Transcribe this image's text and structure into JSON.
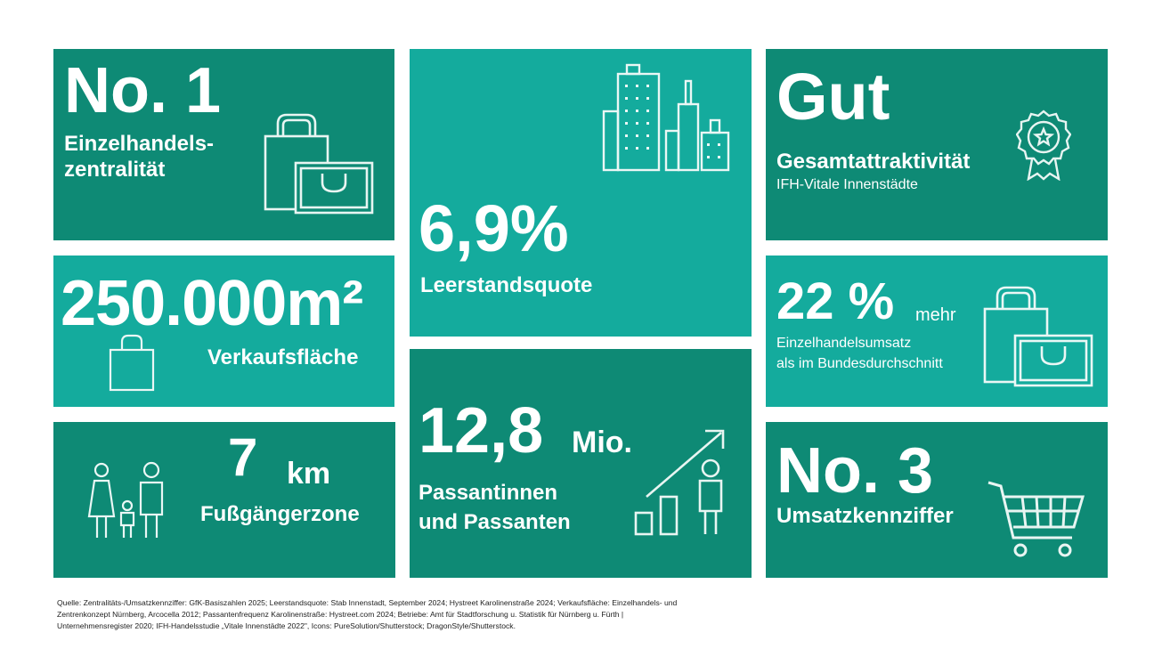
{
  "colors": {
    "dark_tile": "#0e8a75",
    "light_tile": "#14ab9d",
    "text": "#ffffff"
  },
  "tiles": {
    "zentralitaet": {
      "value": "No. 1",
      "label_line1": "Einzelhandels-",
      "label_line2": "zentralität",
      "icon": "shopping-bags-icon"
    },
    "leerstand": {
      "value": "6,9%",
      "label": "Leerstandsquote",
      "icon": "city-buildings-icon"
    },
    "attraktivitaet": {
      "value": "Gut",
      "label": "Gesamtattraktivität",
      "sublabel": "IFH-Vitale Innenstädte",
      "icon": "award-rosette-icon"
    },
    "verkaufsflaeche": {
      "value": "250.000m²",
      "label": "Verkaufsfläche",
      "icon": "shopping-bag-icon"
    },
    "umsatz": {
      "value": "22 %",
      "suffix": "mehr",
      "label_line1": "Einzelhandelsumsatz",
      "label_line2": "als im Bundesdurchschnitt",
      "icon": "shopping-bags-icon"
    },
    "fussgaengerzone": {
      "value": "7",
      "unit": "km",
      "label": "Fußgängerzone",
      "icon": "family-icon"
    },
    "passanten": {
      "value": "12,8",
      "unit": "Mio.",
      "label_line1": "Passantinnen",
      "label_line2": "und Passanten",
      "icon": "growth-chart-person-icon"
    },
    "umsatzkennziffer": {
      "value": "No. 3",
      "label": "Umsatzkennziffer",
      "icon": "shopping-cart-icon"
    }
  },
  "source": {
    "line1": "Quelle: Zentralitäts-/Umsatzkennziffer: GfK-Basiszahlen 2025; Leerstandsquote: Stab Innenstadt, September 2024; Hystreet Karolinenstraße 2024; Verkaufsfläche: Einzelhandels- und",
    "line2": "Zentrenkonzept Nürnberg, Arcocella 2012; Passantenfrequenz Karolinenstraße: Hystreet.com 2024; Betriebe: Amt für Stadtforschung u. Statistik für Nürnberg u. Fürth |",
    "line3": "Unternehmensregister 2020; IFH-Handelsstudie „Vitale Innenstädte 2022\", Icons: PureSolution/Shutterstock; DragonStyle/Shutterstock."
  }
}
